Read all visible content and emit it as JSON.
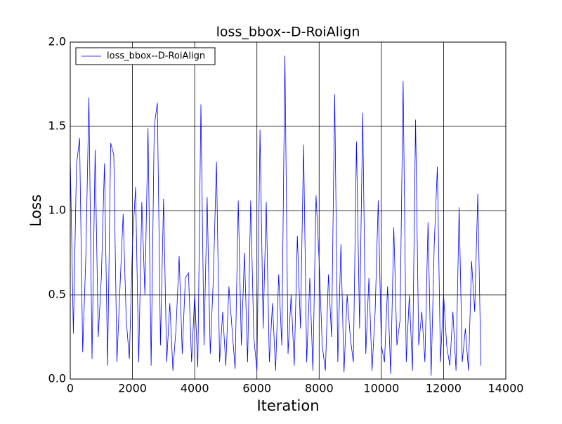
{
  "chart_data": {
    "type": "line",
    "title": "loss_bbox--D-RoiAlign",
    "x_label": "Iteration",
    "y_label": "Loss",
    "x": [
      0,
      100,
      200,
      300,
      400,
      500,
      600,
      700,
      800,
      900,
      1000,
      1100,
      1200,
      1300,
      1400,
      1500,
      1600,
      1700,
      1800,
      1900,
      2000,
      2100,
      2200,
      2300,
      2400,
      2500,
      2600,
      2700,
      2800,
      2900,
      3000,
      3100,
      3200,
      3300,
      3400,
      3500,
      3600,
      3700,
      3800,
      3900,
      4000,
      4100,
      4200,
      4300,
      4400,
      4500,
      4600,
      4700,
      4800,
      4900,
      5000,
      5100,
      5200,
      5300,
      5400,
      5500,
      5600,
      5700,
      5800,
      5900,
      6000,
      6100,
      6200,
      6300,
      6400,
      6500,
      6600,
      6700,
      6800,
      6900,
      7000,
      7100,
      7200,
      7300,
      7400,
      7500,
      7600,
      7700,
      7800,
      7900,
      8000,
      8100,
      8200,
      8300,
      8400,
      8500,
      8600,
      8700,
      8800,
      8900,
      9000,
      9100,
      9200,
      9300,
      9400,
      9500,
      9600,
      9700,
      9800,
      9900,
      10000,
      10100,
      10200,
      10300,
      10400,
      10500,
      10600,
      10700,
      10800,
      10900,
      11000,
      11100,
      11200,
      11300,
      11400,
      11500,
      11600,
      11700,
      11800,
      11900,
      12000,
      12100,
      12200,
      12300,
      12400,
      12500,
      12600,
      12700,
      12800,
      12900,
      13000,
      13100,
      13200
    ],
    "series": [
      {
        "name": "loss_bbox--D-RoiAlign",
        "color": "#0000ff",
        "values": [
          1.32,
          0.27,
          1.27,
          1.43,
          0.16,
          0.72,
          1.67,
          0.12,
          1.36,
          0.25,
          0.61,
          1.28,
          0.08,
          1.4,
          1.33,
          0.1,
          0.55,
          0.98,
          0.35,
          0.12,
          0.8,
          1.14,
          0.1,
          1.05,
          0.5,
          1.49,
          0.08,
          1.5,
          1.64,
          0.2,
          1.07,
          0.1,
          0.45,
          0.05,
          0.3,
          0.73,
          0.15,
          0.6,
          0.63,
          0.1,
          0.5,
          0.07,
          1.63,
          0.2,
          1.08,
          0.15,
          0.6,
          1.29,
          0.1,
          0.4,
          0.08,
          0.55,
          0.3,
          0.06,
          1.06,
          0.2,
          0.75,
          0.1,
          1.06,
          0.25,
          0.05,
          1.48,
          0.3,
          1.05,
          0.1,
          0.45,
          0.05,
          0.62,
          0.2,
          1.92,
          0.15,
          0.5,
          0.08,
          0.85,
          0.3,
          1.39,
          0.1,
          0.6,
          0.05,
          1.09,
          0.7,
          0.2,
          0.05,
          0.62,
          0.25,
          1.69,
          0.1,
          0.8,
          0.04,
          0.5,
          0.25,
          0.1,
          1.41,
          0.3,
          1.58,
          0.15,
          0.6,
          0.05,
          0.4,
          1.06,
          0.2,
          0.1,
          0.55,
          0.03,
          0.9,
          0.2,
          0.35,
          1.77,
          0.1,
          0.5,
          0.05,
          1.54,
          0.2,
          0.4,
          0.1,
          0.93,
          0.02,
          0.8,
          1.26,
          0.1,
          0.5,
          0.2,
          0.08,
          0.4,
          0.05,
          1.02,
          0.1,
          0.3,
          0.05,
          0.7,
          0.4,
          1.1,
          0.08
        ]
      }
    ],
    "xlim": [
      0,
      14000
    ],
    "ylim": [
      0,
      2
    ],
    "xticks": [
      0,
      2000,
      4000,
      6000,
      8000,
      10000,
      12000,
      14000
    ],
    "yticks": [
      {
        "value": 0,
        "label": "0.0"
      },
      {
        "value": 0.5,
        "label": "0.5"
      },
      {
        "value": 1,
        "label": "1.0"
      },
      {
        "value": 1.5,
        "label": "1.5"
      },
      {
        "value": 2,
        "label": "2.0"
      }
    ],
    "grid": true,
    "legend": "upper left"
  }
}
